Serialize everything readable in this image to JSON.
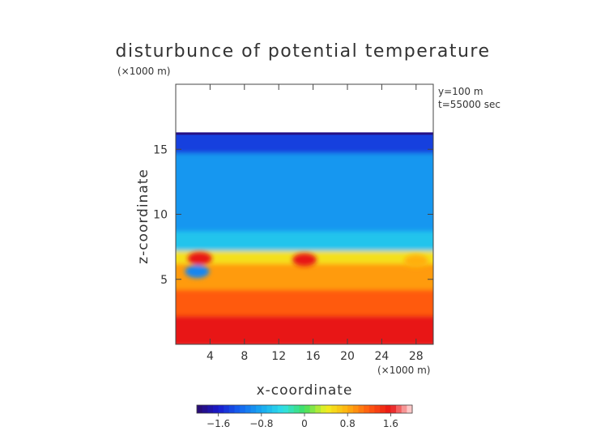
{
  "chart_data": {
    "type": "heatmap",
    "title": "disturbunce of potential temperature",
    "scale_note": "(×1000 m)",
    "annotations": [
      "y=100 m",
      "t=55000 sec"
    ],
    "xlabel": "x-coordinate",
    "ylabel": "z-coordinate",
    "x_unit_note": "(×1000 m)",
    "xlim": [
      0,
      30
    ],
    "ylim": [
      0,
      20
    ],
    "x_ticks": [
      4,
      8,
      12,
      16,
      20,
      24,
      28
    ],
    "y_ticks": [
      5,
      10,
      15
    ],
    "data_top_z": 16.3,
    "grid": false,
    "colorbar": {
      "range": [
        -2.0,
        2.0
      ],
      "ticks": [
        -1.6,
        -0.8,
        0,
        0.8,
        1.6
      ],
      "tick_labels": [
        "−1.6",
        "−0.8",
        "0",
        "0.8",
        "1.6"
      ],
      "colors": [
        "#2a0a6a",
        "#1a1acc",
        "#1464f0",
        "#18a8f0",
        "#30e0e8",
        "#40e060",
        "#f0f020",
        "#ffb010",
        "#ff5a10",
        "#e81414",
        "#ffe0e0"
      ]
    },
    "field_description": [
      {
        "z_range": [
          14.5,
          16.3
        ],
        "value": -1.4
      },
      {
        "z_range": [
          8.5,
          14.5
        ],
        "value": -0.9
      },
      {
        "z_range": [
          7.0,
          8.5
        ],
        "value": -0.6
      },
      {
        "z_range": [
          6.0,
          7.0
        ],
        "value": 0.5
      },
      {
        "z_range": [
          4.0,
          6.0
        ],
        "value": 0.9
      },
      {
        "z_range": [
          2.0,
          4.0
        ],
        "value": 1.2
      },
      {
        "z_range": [
          0.0,
          2.0
        ],
        "value": 1.6
      }
    ],
    "features": [
      {
        "x": 2.8,
        "z": 6.6,
        "value": 1.6
      },
      {
        "x": 15.0,
        "z": 6.5,
        "value": 1.6
      },
      {
        "x": 28.0,
        "z": 6.4,
        "value": 0.8
      },
      {
        "x": 2.5,
        "z": 5.6,
        "value": -1.0
      }
    ]
  }
}
